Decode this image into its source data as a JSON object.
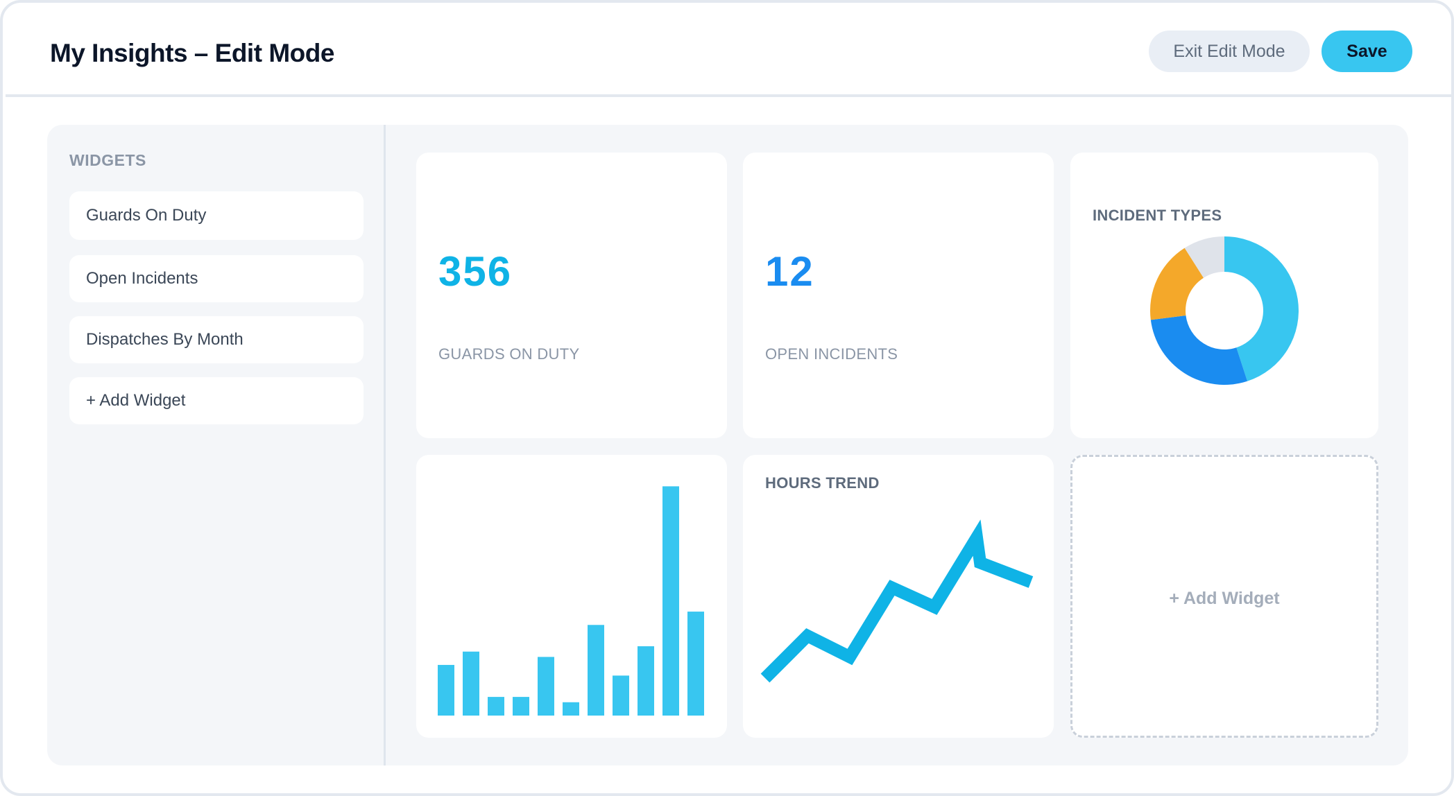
{
  "header": {
    "title": "My Insights – Edit Mode",
    "exit_label": "Exit Edit Mode",
    "save_label": "Save"
  },
  "sidebar": {
    "heading": "WIDGETS",
    "items": [
      {
        "label": "Guards On Duty"
      },
      {
        "label": "Open Incidents"
      },
      {
        "label": "Dispatches By Month"
      },
      {
        "label": "+ Add Widget"
      }
    ]
  },
  "widgets": {
    "guards": {
      "value": "356",
      "label": "GUARDS ON DUTY",
      "color": "#0fb3e6"
    },
    "incidents": {
      "value": "12",
      "label": "OPEN INCIDENTS",
      "color": "#1a8cf0"
    },
    "incident_types": {
      "title": "INCIDENT TYPES"
    },
    "hours_trend": {
      "title": "HOURS TREND"
    },
    "add_widget": {
      "label": "+ Add Widget"
    }
  },
  "colors": {
    "accent": "#38c6f0",
    "blue": "#1a8cf0",
    "orange": "#f4a82a",
    "light_gray": "#dfe3ea",
    "line": "#0fb3e6"
  },
  "chart_data": [
    {
      "type": "pie",
      "title": "INCIDENT TYPES",
      "values": [
        45,
        28,
        18,
        9
      ],
      "colors": [
        "#38c6f0",
        "#1a8cf0",
        "#f4a82a",
        "#dfe3ea"
      ],
      "donut": true
    },
    {
      "type": "bar",
      "title": "",
      "values": [
        19,
        24,
        7,
        7,
        22,
        5,
        34,
        15,
        26,
        86,
        39
      ],
      "ylim": [
        0,
        90
      ],
      "color": "#38c6f0"
    },
    {
      "type": "line",
      "title": "HOURS TREND",
      "values": [
        0,
        22,
        11,
        47,
        37,
        73,
        60
      ],
      "ylim": [
        0,
        80
      ],
      "color": "#0fb3e6"
    }
  ]
}
